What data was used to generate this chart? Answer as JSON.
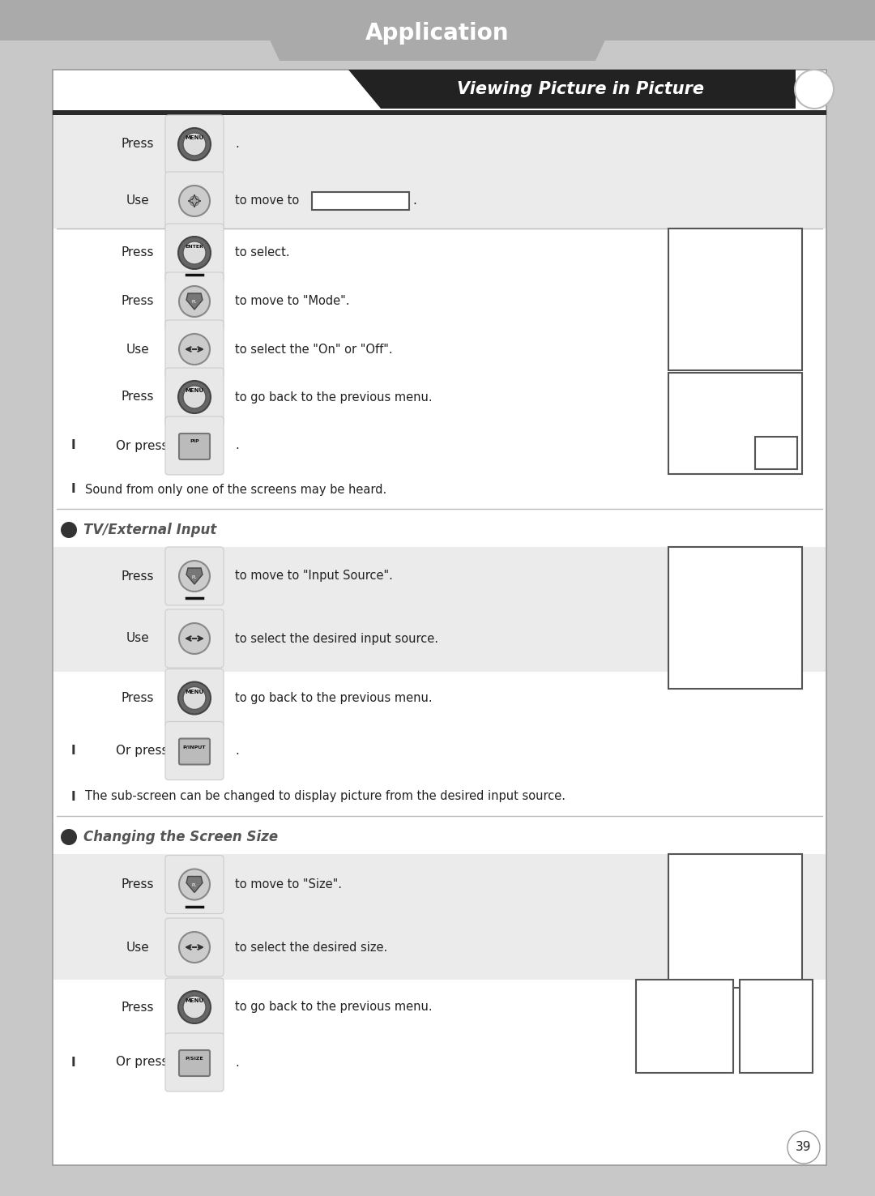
{
  "title": "Application",
  "section1_title": "Viewing Picture in Picture",
  "section2_title": "TV/External Input",
  "section3_title": "Changing the Screen Size",
  "page_number": "39",
  "outer_bg": "#c8c8c8",
  "content_bg": "#ffffff",
  "shaded_bg": "#ebebeb",
  "header_bg": "#aaaaaa",
  "banner_bg": "#222222",
  "dark_bar": "#2a2a2a",
  "border_color": "#888888",
  "divider_color": "#bbbbbb",
  "icon_outer": "#e8e8e8",
  "icon_border": "#bbbbbb"
}
